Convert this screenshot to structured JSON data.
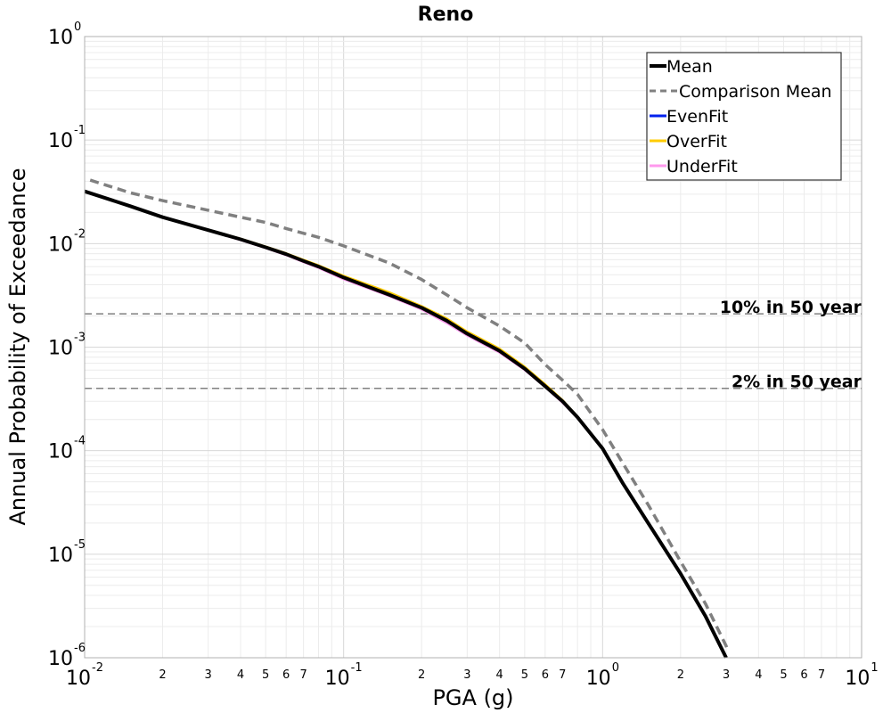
{
  "chart_data": {
    "type": "line",
    "title": "Reno",
    "xlabel": "PGA (g)",
    "ylabel": "Annual Probability of Exceedance",
    "x_scale": "log",
    "y_scale": "log",
    "xlim": [
      0.01,
      10
    ],
    "ylim": [
      1e-06,
      1
    ],
    "grid": true,
    "legend_position": "top-right",
    "x_major_ticks": [
      {
        "base": "10",
        "exp": "-2",
        "value": 0.01
      },
      {
        "base": "10",
        "exp": "-1",
        "value": 0.1
      },
      {
        "base": "10",
        "exp": "0",
        "value": 1
      },
      {
        "base": "10",
        "exp": "1",
        "value": 10
      }
    ],
    "x_minor_tick_labels": [
      "2",
      "3",
      "4",
      "5",
      "6",
      "7"
    ],
    "y_major_ticks": [
      {
        "base": "10",
        "exp": "0",
        "value": 1
      },
      {
        "base": "10",
        "exp": "-1",
        "value": 0.1
      },
      {
        "base": "10",
        "exp": "-2",
        "value": 0.01
      },
      {
        "base": "10",
        "exp": "-3",
        "value": 0.001
      },
      {
        "base": "10",
        "exp": "-4",
        "value": 0.0001
      },
      {
        "base": "10",
        "exp": "-5",
        "value": 1e-05
      },
      {
        "base": "10",
        "exp": "-6",
        "value": 1e-06
      }
    ],
    "reference_lines": [
      {
        "label": "10% in 50 year",
        "y": 0.0021,
        "color": "#808080"
      },
      {
        "label": "2% in 50 year",
        "y": 0.0004,
        "color": "#808080"
      }
    ],
    "series": [
      {
        "name": "Mean",
        "color": "#000000",
        "style": "solid",
        "x": [
          0.01,
          0.015,
          0.02,
          0.03,
          0.04,
          0.05,
          0.06,
          0.07,
          0.08,
          0.1,
          0.15,
          0.2,
          0.25,
          0.3,
          0.4,
          0.5,
          0.6,
          0.7,
          0.8,
          1.0,
          1.2,
          1.5,
          2.0,
          2.5,
          3.0
        ],
        "y": [
          0.032,
          0.023,
          0.018,
          0.0135,
          0.011,
          0.0092,
          0.0079,
          0.0068,
          0.006,
          0.0047,
          0.0032,
          0.0024,
          0.0018,
          0.00135,
          0.00092,
          0.00062,
          0.00042,
          0.0003,
          0.00021,
          0.000105,
          4.8e-05,
          2e-05,
          6.5e-06,
          2.5e-06,
          1e-06
        ]
      },
      {
        "name": "Comparison Mean",
        "color": "#808080",
        "style": "dashed",
        "x": [
          0.0105,
          0.015,
          0.02,
          0.03,
          0.04,
          0.05,
          0.06,
          0.08,
          0.1,
          0.15,
          0.2,
          0.25,
          0.3,
          0.4,
          0.5,
          0.6,
          0.7,
          0.8,
          1.0,
          1.2,
          1.5,
          2.0,
          2.5,
          3.0,
          3.05
        ],
        "y": [
          0.041,
          0.031,
          0.026,
          0.021,
          0.018,
          0.016,
          0.014,
          0.0115,
          0.0095,
          0.0065,
          0.0045,
          0.0032,
          0.0024,
          0.0016,
          0.0011,
          0.00068,
          0.00048,
          0.00035,
          0.00016,
          7.5e-05,
          3e-05,
          8.5e-06,
          3.3e-06,
          1.3e-06,
          1.15e-06
        ]
      },
      {
        "name": "EvenFit",
        "color": "#0022ee",
        "style": "solid",
        "x": [
          0.01,
          0.015,
          0.02,
          0.03,
          0.04,
          0.05,
          0.06,
          0.07,
          0.08,
          0.1,
          0.15,
          0.2,
          0.25,
          0.3,
          0.4,
          0.5,
          0.6,
          0.7,
          0.8,
          1.0,
          1.2,
          1.5,
          2.0,
          2.5,
          3.0
        ],
        "y": [
          0.032,
          0.023,
          0.018,
          0.0135,
          0.011,
          0.0092,
          0.0079,
          0.0068,
          0.006,
          0.0047,
          0.0032,
          0.0024,
          0.0018,
          0.00135,
          0.00092,
          0.00062,
          0.00042,
          0.0003,
          0.00021,
          0.000105,
          4.8e-05,
          2e-05,
          6.5e-06,
          2.5e-06,
          1e-06
        ]
      },
      {
        "name": "OverFit",
        "color": "#ffcc00",
        "style": "solid",
        "x": [
          0.01,
          0.015,
          0.02,
          0.03,
          0.04,
          0.05,
          0.06,
          0.07,
          0.08,
          0.1,
          0.15,
          0.2,
          0.25,
          0.3,
          0.4,
          0.5,
          0.6,
          0.7,
          0.8,
          1.0,
          1.2,
          1.5,
          2.0,
          2.5,
          3.0
        ],
        "y": [
          0.0322,
          0.0232,
          0.0182,
          0.0137,
          0.0112,
          0.0094,
          0.0081,
          0.007,
          0.0062,
          0.0049,
          0.0034,
          0.0025,
          0.0019,
          0.00142,
          0.00097,
          0.00065,
          0.00044,
          0.00031,
          0.000215,
          0.000107,
          4.9e-05,
          2.02e-05,
          6.6e-06,
          2.5e-06,
          1e-06
        ]
      },
      {
        "name": "UnderFit",
        "color": "#ff99ee",
        "style": "solid",
        "x": [
          0.01,
          0.015,
          0.02,
          0.03,
          0.04,
          0.05,
          0.06,
          0.07,
          0.08,
          0.1,
          0.15,
          0.2,
          0.25,
          0.3,
          0.4,
          0.5,
          0.6,
          0.7,
          0.8,
          1.0,
          1.2,
          1.5,
          2.0,
          2.5,
          3.0
        ],
        "y": [
          0.0318,
          0.0228,
          0.0178,
          0.0133,
          0.0108,
          0.009,
          0.0077,
          0.0066,
          0.0058,
          0.0045,
          0.0031,
          0.0023,
          0.0017,
          0.00129,
          0.00088,
          0.0006,
          0.00041,
          0.00029,
          0.000205,
          0.000103,
          4.7e-05,
          1.98e-05,
          6.4e-06,
          2.5e-06,
          1e-06
        ]
      }
    ]
  }
}
